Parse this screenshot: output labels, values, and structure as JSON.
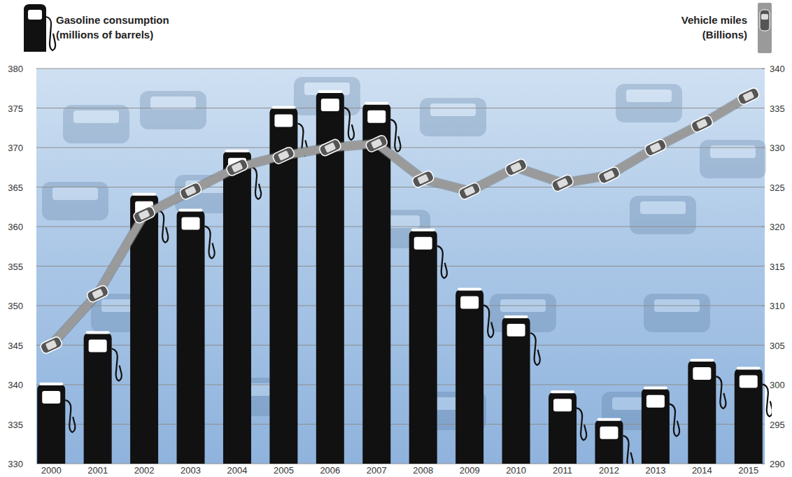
{
  "chart_data": {
    "type": "bar",
    "categories": [
      "2000",
      "2001",
      "2002",
      "2003",
      "2004",
      "2005",
      "2006",
      "2007",
      "2008",
      "2009",
      "2010",
      "2011",
      "2012",
      "2013",
      "2014",
      "2015"
    ],
    "series": [
      {
        "name": "Gasoline consumption (millions of barrels)",
        "type": "bar",
        "color": "#111111",
        "values": [
          340,
          346.5,
          364,
          362,
          369.5,
          375,
          377,
          375.5,
          359.5,
          352,
          348.5,
          339,
          335.5,
          339.5,
          343,
          342
        ]
      },
      {
        "name": "Vehicle miles (Billions)",
        "type": "line",
        "color": "#9a9a9a",
        "axis": "y2",
        "line_style": "solid",
        "values": [
          305,
          311.5,
          321.5,
          324.5,
          327.5,
          329,
          330,
          330.5,
          326,
          324.5,
          327.5,
          325.5,
          326.5,
          330,
          333,
          336.5
        ]
      }
    ],
    "ylim": [
      330,
      380
    ],
    "yticks": [
      330,
      335,
      340,
      345,
      350,
      355,
      360,
      365,
      370,
      375,
      380
    ],
    "y2lim": [
      290,
      340
    ],
    "y2ticks": [
      290,
      295,
      300,
      305,
      310,
      315,
      320,
      325,
      330,
      335,
      340
    ],
    "grid": true
  }
}
